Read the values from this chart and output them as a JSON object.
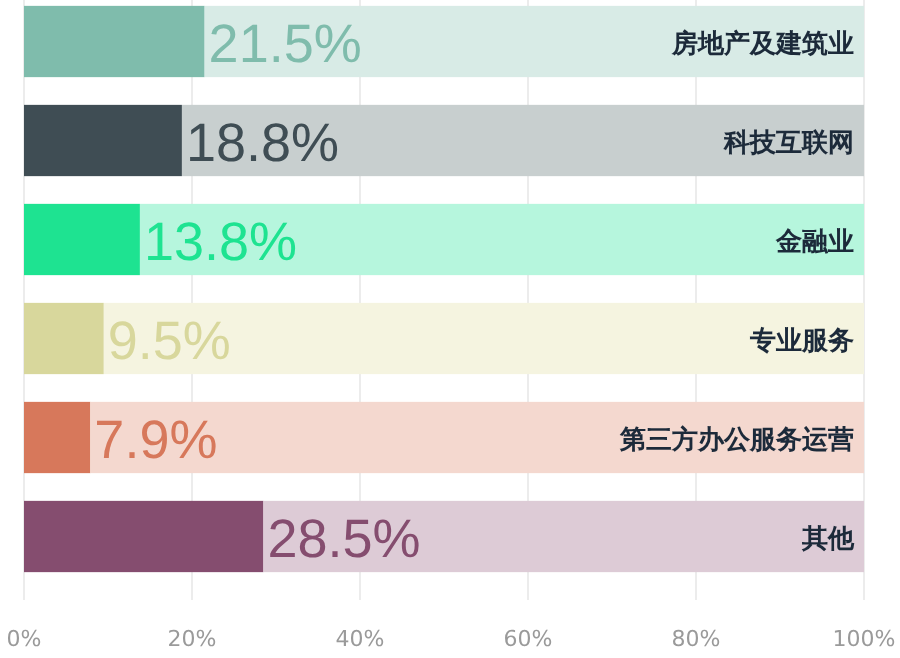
{
  "chart_data": {
    "type": "bar",
    "orientation": "horizontal",
    "stacked": true,
    "grid": "x",
    "categories": [
      "房地产及建筑业",
      "科技互联网",
      "金融业",
      "专业服务",
      "第三方办公服务运营",
      "其他"
    ],
    "series": [
      {
        "colors": [
          "#7fbcac",
          "#3f4d54",
          "#1ee391",
          "#d8d79c",
          "#d7785b",
          "#854d6f"
        ],
        "values": [
          21.5,
          18.8,
          13.8,
          9.5,
          7.9,
          28.5
        ],
        "value_labels": [
          "21.5%",
          "18.8%",
          "13.8%",
          "9.5%",
          "7.9%",
          "28.5%"
        ]
      },
      {
        "colors": [
          "#d8ebe6",
          "#c8cfcf",
          "#b6f6dd",
          "#f5f4e0",
          "#f4d8cf",
          "#ddcbd6"
        ],
        "values": [
          78.5,
          81.2,
          86.2,
          90.5,
          92.1,
          71.5
        ]
      }
    ],
    "xlim": [
      0,
      100
    ],
    "xticks": [
      {
        "value": 0,
        "label": "0%"
      },
      {
        "value": 20,
        "label": "20%"
      },
      {
        "value": 40,
        "label": "40%"
      },
      {
        "value": 60,
        "label": "60%"
      },
      {
        "value": 80,
        "label": "80%"
      },
      {
        "value": 100,
        "label": "100%"
      }
    ]
  }
}
